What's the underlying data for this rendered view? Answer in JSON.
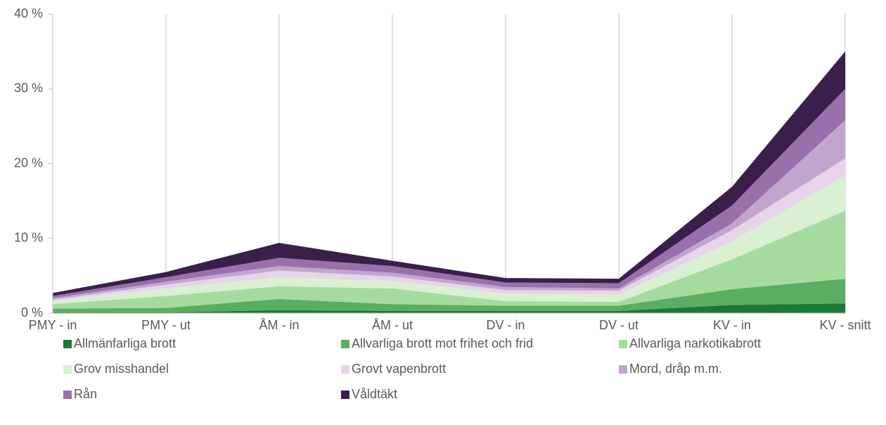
{
  "chart_data": {
    "type": "stacked_area",
    "categories": [
      "PMY - in",
      "PMY - ut",
      "ÅM - in",
      "ÅM - ut",
      "DV - in",
      "DV - ut",
      "KV - in",
      "KV - snitt"
    ],
    "series": [
      {
        "name": "Allmänfarliga brott",
        "color": "#1b7837",
        "values": [
          0.1,
          0.1,
          0.4,
          0.3,
          0.3,
          0.3,
          1.1,
          1.3
        ]
      },
      {
        "name": "Allvarliga brott mot frihet och frid",
        "color": "#5aae61",
        "values": [
          0.5,
          0.6,
          1.5,
          0.9,
          0.7,
          0.7,
          2.1,
          3.3
        ]
      },
      {
        "name": "Allvarliga narkotikabrott",
        "color": "#a6dba0",
        "values": [
          0.6,
          1.6,
          1.7,
          2.1,
          0.6,
          0.5,
          4.0,
          9.1
        ]
      },
      {
        "name": "Grov misshandel",
        "color": "#d9f0d3",
        "values": [
          0.4,
          1.0,
          1.2,
          1.0,
          1.0,
          1.0,
          2.4,
          4.7
        ]
      },
      {
        "name": "Grovt vapenbrott",
        "color": "#e7d4e8",
        "values": [
          0.2,
          0.5,
          0.9,
          0.6,
          0.5,
          0.5,
          1.5,
          2.3
        ]
      },
      {
        "name": "Mord, dråp m.m.",
        "color": "#c2a5cf",
        "values": [
          0.2,
          0.4,
          0.6,
          0.5,
          0.4,
          0.3,
          0.9,
          5.1
        ]
      },
      {
        "name": "Rån",
        "color": "#9970ab",
        "values": [
          0.3,
          0.6,
          1.1,
          0.9,
          0.6,
          0.7,
          2.4,
          4.2
        ]
      },
      {
        "name": "Våldtäkt",
        "color": "#3a1f4a",
        "values": [
          0.4,
          0.7,
          2.0,
          0.7,
          0.6,
          0.6,
          2.5,
          5.0
        ]
      }
    ],
    "ylim": [
      0,
      40
    ],
    "yticks": [
      {
        "value": 0,
        "label": "0 %"
      },
      {
        "value": 10,
        "label": "10 %"
      },
      {
        "value": 20,
        "label": "20 %"
      },
      {
        "value": 30,
        "label": "30 %"
      },
      {
        "value": 40,
        "label": "40 %"
      }
    ],
    "grid": true
  }
}
